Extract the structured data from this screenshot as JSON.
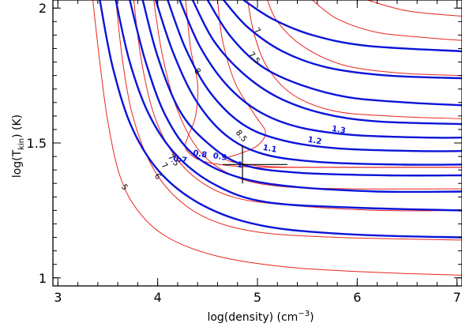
{
  "chart_data": {
    "type": "line",
    "title": "",
    "xlabel": "log(density) (cm",
    "xlabel_sup": "−3",
    "xlabel_end": ")",
    "ylabel": "log(T",
    "ylabel_sub": "kin",
    "ylabel_end": ") (K)",
    "xlim": [
      2.95,
      7.05
    ],
    "ylim": [
      0.97,
      2.03
    ],
    "x_ticks": [
      {
        "value": 3,
        "label": "3"
      },
      {
        "value": 4,
        "label": "4"
      },
      {
        "value": 5,
        "label": "5"
      },
      {
        "value": 6,
        "label": "6"
      },
      {
        "value": 7,
        "label": "7"
      }
    ],
    "y_ticks": [
      {
        "value": 1,
        "label": "1"
      },
      {
        "value": 1.5,
        "label": "1.5"
      },
      {
        "value": 2,
        "label": "2"
      }
    ],
    "colors": {
      "red_series": "#e8261e",
      "blue_series": "#0a14d8",
      "axis": "#000000"
    },
    "red_series": [
      {
        "name": "5",
        "label": "5",
        "label_at": [
          3.65,
          1.33
        ],
        "points": [
          [
            3.35,
            2.03
          ],
          [
            3.42,
            1.8
          ],
          [
            3.5,
            1.58
          ],
          [
            3.62,
            1.38
          ],
          [
            3.8,
            1.25
          ],
          [
            4.1,
            1.15
          ],
          [
            4.6,
            1.08
          ],
          [
            5.3,
            1.04
          ],
          [
            6.2,
            1.02
          ],
          [
            7.05,
            1.01
          ]
        ]
      },
      {
        "name": "6",
        "label": "6",
        "label_at": [
          3.98,
          1.37
        ],
        "points": [
          [
            3.58,
            2.03
          ],
          [
            3.65,
            1.8
          ],
          [
            3.75,
            1.6
          ],
          [
            3.92,
            1.43
          ],
          [
            4.15,
            1.31
          ],
          [
            4.5,
            1.22
          ],
          [
            5.0,
            1.17
          ],
          [
            5.8,
            1.15
          ],
          [
            7.05,
            1.14
          ]
        ]
      },
      {
        "name": "7",
        "label": "7",
        "label_at": [
          4.05,
          1.41
        ],
        "points": [
          [
            3.76,
            2.03
          ],
          [
            3.83,
            1.82
          ],
          [
            3.95,
            1.62
          ],
          [
            4.12,
            1.48
          ],
          [
            4.38,
            1.37
          ],
          [
            4.75,
            1.3
          ],
          [
            5.3,
            1.27
          ],
          [
            6.2,
            1.25
          ],
          [
            7.05,
            1.25
          ]
        ]
      },
      {
        "name": "7.5",
        "label": "7.5",
        "label_at": [
          4.14,
          1.43
        ],
        "points": [
          [
            3.96,
            2.03
          ],
          [
            4.05,
            1.82
          ],
          [
            4.2,
            1.62
          ],
          [
            4.42,
            1.47
          ],
          [
            4.75,
            1.38
          ],
          [
            5.2,
            1.34
          ],
          [
            6.0,
            1.33
          ],
          [
            7.05,
            1.33
          ]
        ]
      },
      {
        "name": "8",
        "label": "8",
        "label_at": [
          4.38,
          1.76
        ],
        "points": [
          [
            4.28,
            2.03
          ],
          [
            4.33,
            1.85
          ],
          [
            4.4,
            1.72
          ],
          [
            4.38,
            1.6
          ],
          [
            4.3,
            1.52
          ],
          [
            4.28,
            1.48
          ],
          [
            4.4,
            1.44
          ],
          [
            4.62,
            1.42
          ],
          [
            5.0,
            1.41
          ],
          [
            5.8,
            1.41
          ],
          [
            7.05,
            1.41
          ]
        ]
      },
      {
        "name": "8.5",
        "label": "8.5",
        "label_at": [
          4.82,
          1.52
        ],
        "points": [
          [
            4.6,
            2.03
          ],
          [
            4.65,
            1.88
          ],
          [
            4.78,
            1.72
          ],
          [
            4.98,
            1.6
          ],
          [
            5.08,
            1.54
          ],
          [
            5.0,
            1.49
          ],
          [
            4.82,
            1.46
          ],
          [
            4.68,
            1.44
          ],
          [
            4.9,
            1.42
          ],
          [
            5.4,
            1.41
          ],
          [
            7.05,
            1.41
          ]
        ]
      },
      {
        "name": "7.5",
        "label": "7.5",
        "label_at": [
          4.95,
          1.81
        ],
        "points": [
          [
            4.9,
            2.03
          ],
          [
            4.97,
            1.9
          ],
          [
            5.1,
            1.78
          ],
          [
            5.35,
            1.68
          ],
          [
            5.75,
            1.62
          ],
          [
            6.3,
            1.6
          ],
          [
            7.05,
            1.59
          ]
        ]
      },
      {
        "name": "7",
        "label": "7",
        "label_at": [
          4.98,
          1.91
        ],
        "points": [
          [
            5.1,
            2.03
          ],
          [
            5.2,
            1.95
          ],
          [
            5.45,
            1.86
          ],
          [
            5.85,
            1.79
          ],
          [
            6.4,
            1.76
          ],
          [
            7.05,
            1.75
          ]
        ]
      },
      {
        "name": "6",
        "label": "",
        "label_at": null,
        "points": [
          [
            5.55,
            2.03
          ],
          [
            5.8,
            1.96
          ],
          [
            6.2,
            1.91
          ],
          [
            6.7,
            1.89
          ],
          [
            7.05,
            1.88
          ]
        ]
      },
      {
        "name": "5",
        "label": "",
        "label_at": null,
        "points": [
          [
            6.1,
            2.03
          ],
          [
            6.5,
            1.99
          ],
          [
            7.05,
            1.97
          ]
        ]
      }
    ],
    "blue_series": [
      {
        "name": "",
        "label": "",
        "label_at": null,
        "points": [
          [
            3.42,
            2.03
          ],
          [
            3.55,
            1.78
          ],
          [
            3.75,
            1.55
          ],
          [
            4.05,
            1.38
          ],
          [
            4.5,
            1.26
          ],
          [
            5.1,
            1.19
          ],
          [
            6.0,
            1.16
          ],
          [
            7.05,
            1.15
          ]
        ]
      },
      {
        "name": "",
        "label": "",
        "label_at": null,
        "points": [
          [
            3.58,
            2.03
          ],
          [
            3.72,
            1.8
          ],
          [
            3.92,
            1.6
          ],
          [
            4.2,
            1.45
          ],
          [
            4.6,
            1.34
          ],
          [
            5.1,
            1.28
          ],
          [
            6.0,
            1.26
          ],
          [
            7.05,
            1.25
          ]
        ]
      },
      {
        "name": "0.7",
        "label": "0.7",
        "label_at": [
          4.22,
          1.43
        ],
        "points": [
          [
            3.72,
            2.03
          ],
          [
            3.88,
            1.8
          ],
          [
            4.08,
            1.6
          ],
          [
            4.35,
            1.46
          ],
          [
            4.75,
            1.38
          ],
          [
            5.3,
            1.34
          ],
          [
            6.2,
            1.32
          ],
          [
            7.05,
            1.32
          ]
        ]
      },
      {
        "name": "0.8",
        "label": "0.8",
        "label_at": [
          4.42,
          1.45
        ],
        "points": [
          [
            3.85,
            2.03
          ],
          [
            4.0,
            1.82
          ],
          [
            4.22,
            1.62
          ],
          [
            4.5,
            1.5
          ],
          [
            4.85,
            1.42
          ],
          [
            5.4,
            1.39
          ],
          [
            6.3,
            1.38
          ],
          [
            7.05,
            1.38
          ]
        ]
      },
      {
        "name": "0.9",
        "label": "0.9",
        "label_at": [
          4.62,
          1.44
        ],
        "points": [
          [
            3.98,
            2.03
          ],
          [
            4.15,
            1.84
          ],
          [
            4.38,
            1.66
          ],
          [
            4.68,
            1.53
          ],
          [
            5.05,
            1.46
          ],
          [
            5.6,
            1.43
          ],
          [
            6.4,
            1.42
          ],
          [
            7.05,
            1.42
          ]
        ]
      },
      {
        "name": "1",
        "label": "1",
        "label_at": [
          4.82,
          1.41
        ],
        "points": [
          [
            4.1,
            2.03
          ],
          [
            4.28,
            1.85
          ],
          [
            4.52,
            1.69
          ],
          [
            4.85,
            1.57
          ],
          [
            5.25,
            1.51
          ],
          [
            5.8,
            1.48
          ],
          [
            6.6,
            1.47
          ],
          [
            7.05,
            1.47
          ]
        ]
      },
      {
        "name": "1.1",
        "label": "1.1",
        "label_at": [
          5.12,
          1.47
        ],
        "points": [
          [
            4.22,
            2.03
          ],
          [
            4.42,
            1.86
          ],
          [
            4.68,
            1.72
          ],
          [
            5.0,
            1.62
          ],
          [
            5.4,
            1.56
          ],
          [
            5.95,
            1.53
          ],
          [
            6.7,
            1.52
          ],
          [
            7.05,
            1.52
          ]
        ]
      },
      {
        "name": "1.2",
        "label": "1.2",
        "label_at": [
          5.57,
          1.5
        ],
        "points": [
          [
            4.35,
            2.03
          ],
          [
            4.56,
            1.88
          ],
          [
            4.85,
            1.76
          ],
          [
            5.2,
            1.67
          ],
          [
            5.65,
            1.61
          ],
          [
            6.2,
            1.58
          ],
          [
            7.05,
            1.57
          ]
        ]
      },
      {
        "name": "1.3",
        "label": "1.3",
        "label_at": [
          5.81,
          1.54
        ],
        "points": [
          [
            4.5,
            2.03
          ],
          [
            4.72,
            1.9
          ],
          [
            5.02,
            1.79
          ],
          [
            5.4,
            1.72
          ],
          [
            5.9,
            1.67
          ],
          [
            6.5,
            1.65
          ],
          [
            7.05,
            1.64
          ]
        ]
      },
      {
        "name": "",
        "label": "",
        "label_at": null,
        "points": [
          [
            4.66,
            2.03
          ],
          [
            4.9,
            1.93
          ],
          [
            5.25,
            1.84
          ],
          [
            5.7,
            1.78
          ],
          [
            6.3,
            1.75
          ],
          [
            7.05,
            1.74
          ]
        ]
      },
      {
        "name": "",
        "label": "",
        "label_at": null,
        "points": [
          [
            4.86,
            2.03
          ],
          [
            5.15,
            1.96
          ],
          [
            5.55,
            1.9
          ],
          [
            6.1,
            1.86
          ],
          [
            7.05,
            1.84
          ]
        ]
      }
    ],
    "error_bar": {
      "x": 4.85,
      "y": 1.42,
      "x_err": [
        4.65,
        5.3
      ],
      "y_err": [
        1.35,
        1.49
      ]
    }
  }
}
